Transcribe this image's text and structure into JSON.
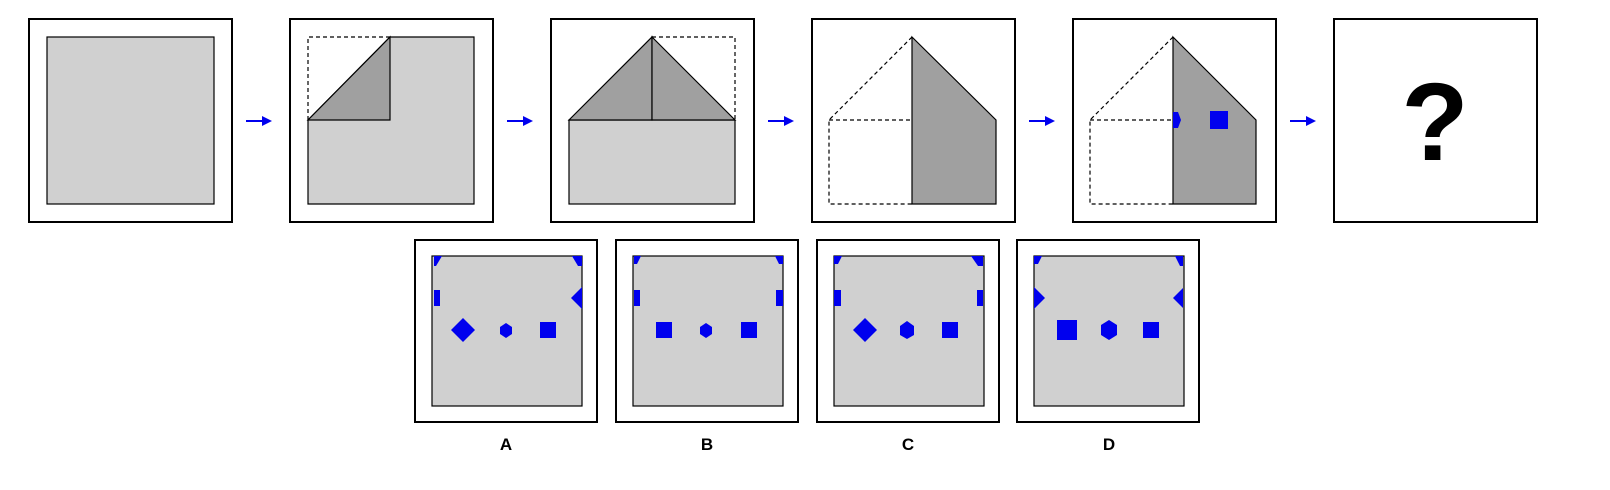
{
  "steps": [
    {
      "id": "step-1"
    },
    {
      "id": "step-2"
    },
    {
      "id": "step-3"
    },
    {
      "id": "step-4"
    },
    {
      "id": "step-5"
    },
    {
      "id": "step-6",
      "text": "?"
    }
  ],
  "options": [
    {
      "label": "A"
    },
    {
      "label": "B"
    },
    {
      "label": "C"
    },
    {
      "label": "D"
    }
  ],
  "colors": {
    "paper": "#d0d0d0",
    "folded": "#a0a0a0",
    "mark": "#0000ee",
    "arrow": "#0000ee"
  }
}
